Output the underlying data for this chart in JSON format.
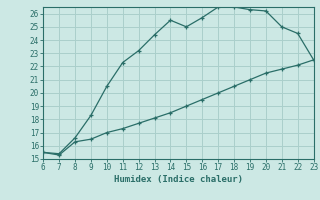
{
  "xlabel": "Humidex (Indice chaleur)",
  "background_color": "#cce8e4",
  "grid_color": "#aacfcb",
  "line_color": "#2a6e68",
  "xlim": [
    6,
    23
  ],
  "ylim": [
    15,
    26.5
  ],
  "xticks": [
    6,
    7,
    8,
    9,
    10,
    11,
    12,
    13,
    14,
    15,
    16,
    17,
    18,
    19,
    20,
    21,
    22,
    23
  ],
  "yticks": [
    15,
    16,
    17,
    18,
    19,
    20,
    21,
    22,
    23,
    24,
    25,
    26
  ],
  "upper_x": [
    6,
    7,
    8,
    9,
    10,
    11,
    12,
    13,
    14,
    15,
    16,
    17,
    18,
    19,
    20,
    21,
    22,
    23
  ],
  "upper_y": [
    15.5,
    15.4,
    16.6,
    18.3,
    20.5,
    22.3,
    23.2,
    24.4,
    25.5,
    25.0,
    25.7,
    26.5,
    26.5,
    26.3,
    26.2,
    25.0,
    24.5,
    22.5
  ],
  "lower_x": [
    6,
    7,
    8,
    9,
    10,
    11,
    12,
    13,
    14,
    15,
    16,
    17,
    18,
    19,
    20,
    21,
    22,
    23
  ],
  "lower_y": [
    15.5,
    15.3,
    16.3,
    16.5,
    17.0,
    17.3,
    17.7,
    18.1,
    18.5,
    19.0,
    19.5,
    20.0,
    20.5,
    21.0,
    21.5,
    21.8,
    22.1,
    22.5
  ]
}
